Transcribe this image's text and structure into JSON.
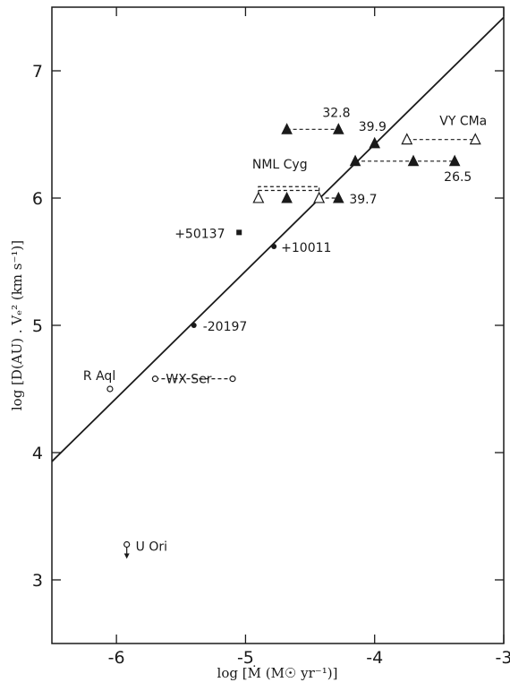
{
  "chart_data": {
    "type": "scatter",
    "title": "",
    "xlabel": "log [Ṁ (M☉ yr⁻¹)]",
    "ylabel": "log [D(AU) . Vₑ² (km s⁻¹)]",
    "xlim": [
      -6.5,
      -3
    ],
    "ylim": [
      2.5,
      7.5
    ],
    "x_ticks": [
      -6,
      -5,
      -4,
      -3
    ],
    "y_ticks": [
      3,
      4,
      5,
      6,
      7
    ],
    "x_tick_labels": [
      "-6",
      "-5",
      "-4",
      "-3"
    ],
    "y_tick_labels": [
      "3",
      "4",
      "5",
      "6",
      "7"
    ],
    "grid": false,
    "fit_line": {
      "x": [
        -6.5,
        -3
      ],
      "y": [
        3.93,
        7.42
      ]
    },
    "points": [
      {
        "label": "R Aql",
        "x": -6.05,
        "y": 4.5,
        "marker": "open-circle"
      },
      {
        "label": "WX Ser",
        "x": -5.7,
        "y": 4.58,
        "marker": "open-circle"
      },
      {
        "label": "",
        "x": -5.1,
        "y": 4.58,
        "marker": "open-circle"
      },
      {
        "label": "U Ori",
        "x": -5.92,
        "y": 3.25,
        "marker": "open-circle-upper-limit"
      },
      {
        "label": "-20197",
        "x": -5.4,
        "y": 5.0,
        "marker": "filled-circle"
      },
      {
        "label": "+50137",
        "x": -5.05,
        "y": 5.73,
        "marker": "filled-square"
      },
      {
        "label": "+10011",
        "x": -4.78,
        "y": 5.62,
        "marker": "filled-circle"
      },
      {
        "label": "",
        "x": -4.68,
        "y": 6.54,
        "marker": "filled-triangle"
      },
      {
        "label": "32.8",
        "x": -4.28,
        "y": 6.54,
        "marker": "filled-triangle"
      },
      {
        "label": "39.9",
        "x": -4.0,
        "y": 6.43,
        "marker": "filled-triangle"
      },
      {
        "label": "",
        "x": -4.15,
        "y": 6.29,
        "marker": "filled-triangle"
      },
      {
        "label": "",
        "x": -3.7,
        "y": 6.29,
        "marker": "filled-triangle"
      },
      {
        "label": "26.5",
        "x": -3.38,
        "y": 6.29,
        "marker": "filled-triangle"
      },
      {
        "label": "NML Cyg",
        "x": -4.9,
        "y": 6.0,
        "marker": "open-triangle"
      },
      {
        "label": "",
        "x": -4.68,
        "y": 6.0,
        "marker": "filled-triangle"
      },
      {
        "label": "",
        "x": -4.43,
        "y": 6.0,
        "marker": "open-triangle"
      },
      {
        "label": "39.7",
        "x": -4.28,
        "y": 6.0,
        "marker": "filled-triangle"
      },
      {
        "label": "",
        "x": -3.75,
        "y": 6.46,
        "marker": "open-triangle"
      },
      {
        "label": "VY CMa",
        "x": -3.22,
        "y": 6.46,
        "marker": "open-triangle"
      }
    ],
    "dashed_links": [
      {
        "x": [
          -5.7,
          -5.1
        ],
        "y": [
          4.58,
          4.58
        ]
      },
      {
        "x": [
          -4.68,
          -4.28
        ],
        "y": [
          6.54,
          6.54
        ]
      },
      {
        "x": [
          -4.15,
          -3.38
        ],
        "y": [
          6.29,
          6.29
        ]
      },
      {
        "x": [
          -4.43,
          -4.28
        ],
        "y": [
          6.0,
          6.0
        ]
      },
      {
        "x": [
          -3.75,
          -3.22
        ],
        "y": [
          6.46,
          6.46
        ]
      },
      {
        "x": [
          -4.9,
          -4.43
        ],
        "y": [
          6.06,
          6.06
        ]
      }
    ],
    "bracket": {
      "x": [
        -4.9,
        -4.43
      ],
      "y": 6.09
    }
  }
}
